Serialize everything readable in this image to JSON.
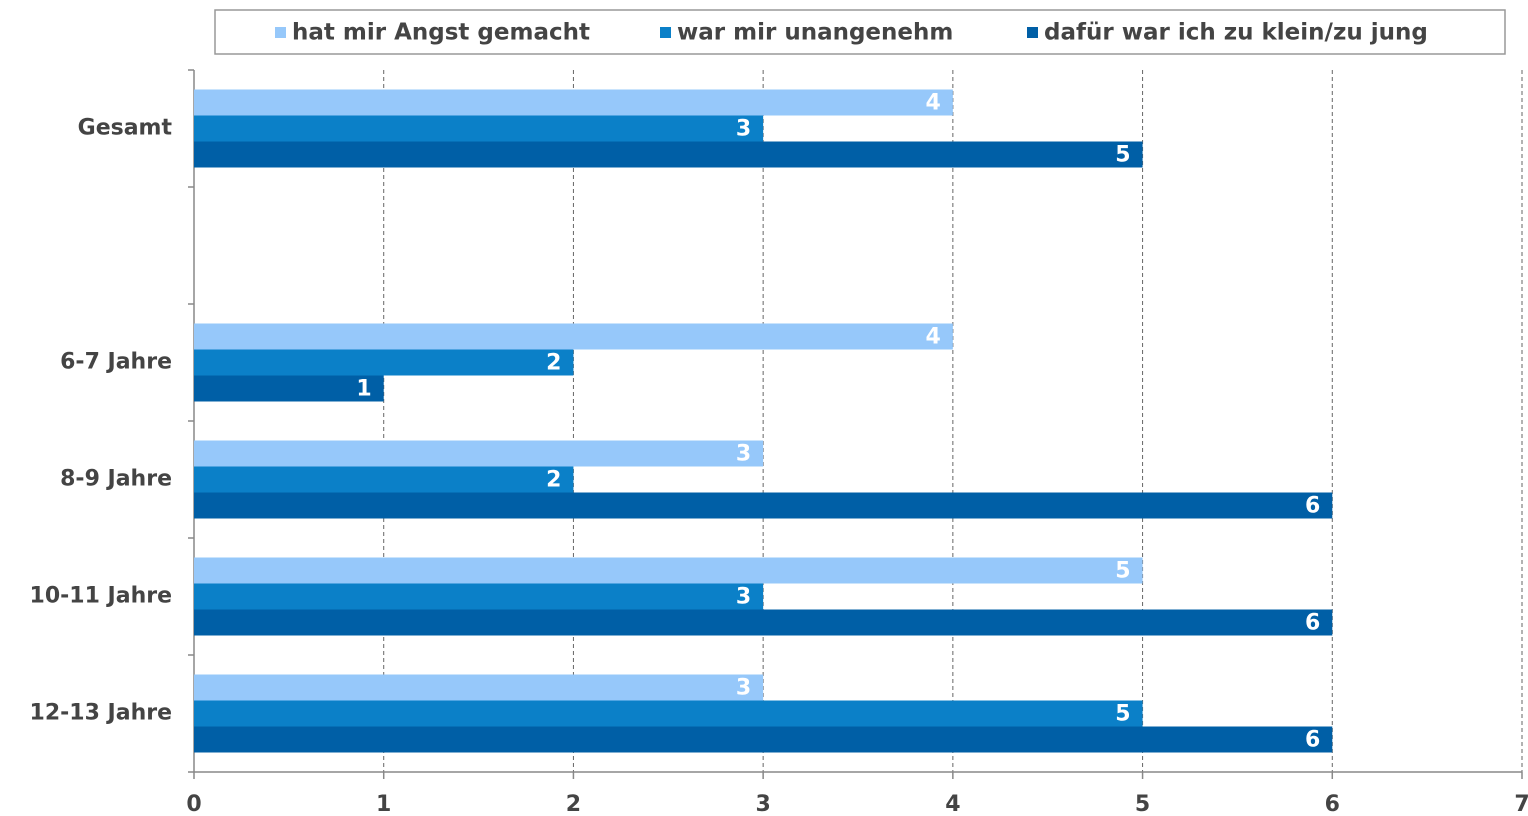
{
  "chart_data": {
    "type": "hbar",
    "categories": [
      "Gesamt",
      null,
      "6-7 Jahre",
      "8-9 Jahre",
      "10-11 Jahre",
      "12-13 Jahre"
    ],
    "series": [
      {
        "name": "hat mir Angst gemacht",
        "color": "#96c8fa",
        "values": [
          4,
          null,
          4,
          3,
          5,
          3
        ]
      },
      {
        "name": "war mir unangenehm",
        "color": "#0b80c8",
        "values": [
          3,
          null,
          2,
          2,
          3,
          5
        ]
      },
      {
        "name": "dafür war ich zu klein/zu jung",
        "color": "#005fa6",
        "values": [
          5,
          null,
          1,
          6,
          6,
          6
        ]
      }
    ],
    "xlim": [
      0,
      7
    ],
    "xticks": [
      0,
      1,
      2,
      3,
      4,
      5,
      6,
      7
    ],
    "grid": true,
    "legend": "top"
  }
}
